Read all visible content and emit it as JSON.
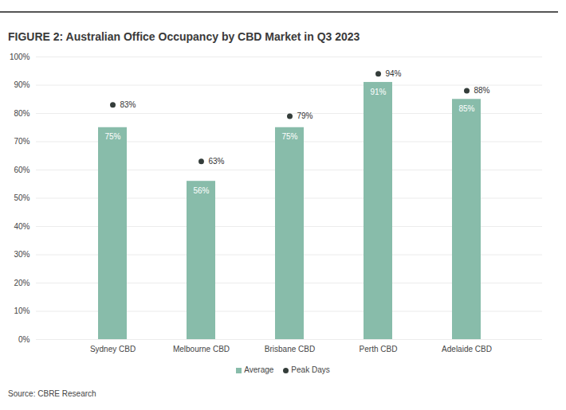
{
  "chart_data": {
    "type": "bar",
    "title": "FIGURE 2: Australian Office Occupancy by CBD Market in Q3 2023",
    "categories": [
      "Sydney CBD",
      "Melbourne CBD",
      "Brisbane CBD",
      "Perth CBD",
      "Adelaide CBD"
    ],
    "series": [
      {
        "name": "Average",
        "type": "bar",
        "color": "#88bcaa",
        "values": [
          75,
          56,
          75,
          91,
          85
        ],
        "value_labels": [
          "75%",
          "56%",
          "75%",
          "91%",
          "85%"
        ]
      },
      {
        "name": "Peak Days",
        "type": "scatter",
        "marker": "circle",
        "color": "#343d3a",
        "values": [
          83,
          63,
          79,
          94,
          88
        ],
        "value_labels": [
          "83%",
          "63%",
          "79%",
          "94%",
          "88%"
        ]
      }
    ],
    "ylim": [
      0,
      100
    ],
    "yticks": [
      {
        "value": 0,
        "label": "0%"
      },
      {
        "value": 10,
        "label": "10%"
      },
      {
        "value": 20,
        "label": "20%"
      },
      {
        "value": 30,
        "label": "30%"
      },
      {
        "value": 40,
        "label": "40%"
      },
      {
        "value": 50,
        "label": "50%"
      },
      {
        "value": 60,
        "label": "60%"
      },
      {
        "value": 70,
        "label": "70%"
      },
      {
        "value": 80,
        "label": "80%"
      },
      {
        "value": 90,
        "label": "90%"
      },
      {
        "value": 100,
        "label": "100%"
      }
    ],
    "grid": true,
    "data_labels": true,
    "legend": "bottom",
    "source": "Source: CBRE Research"
  }
}
